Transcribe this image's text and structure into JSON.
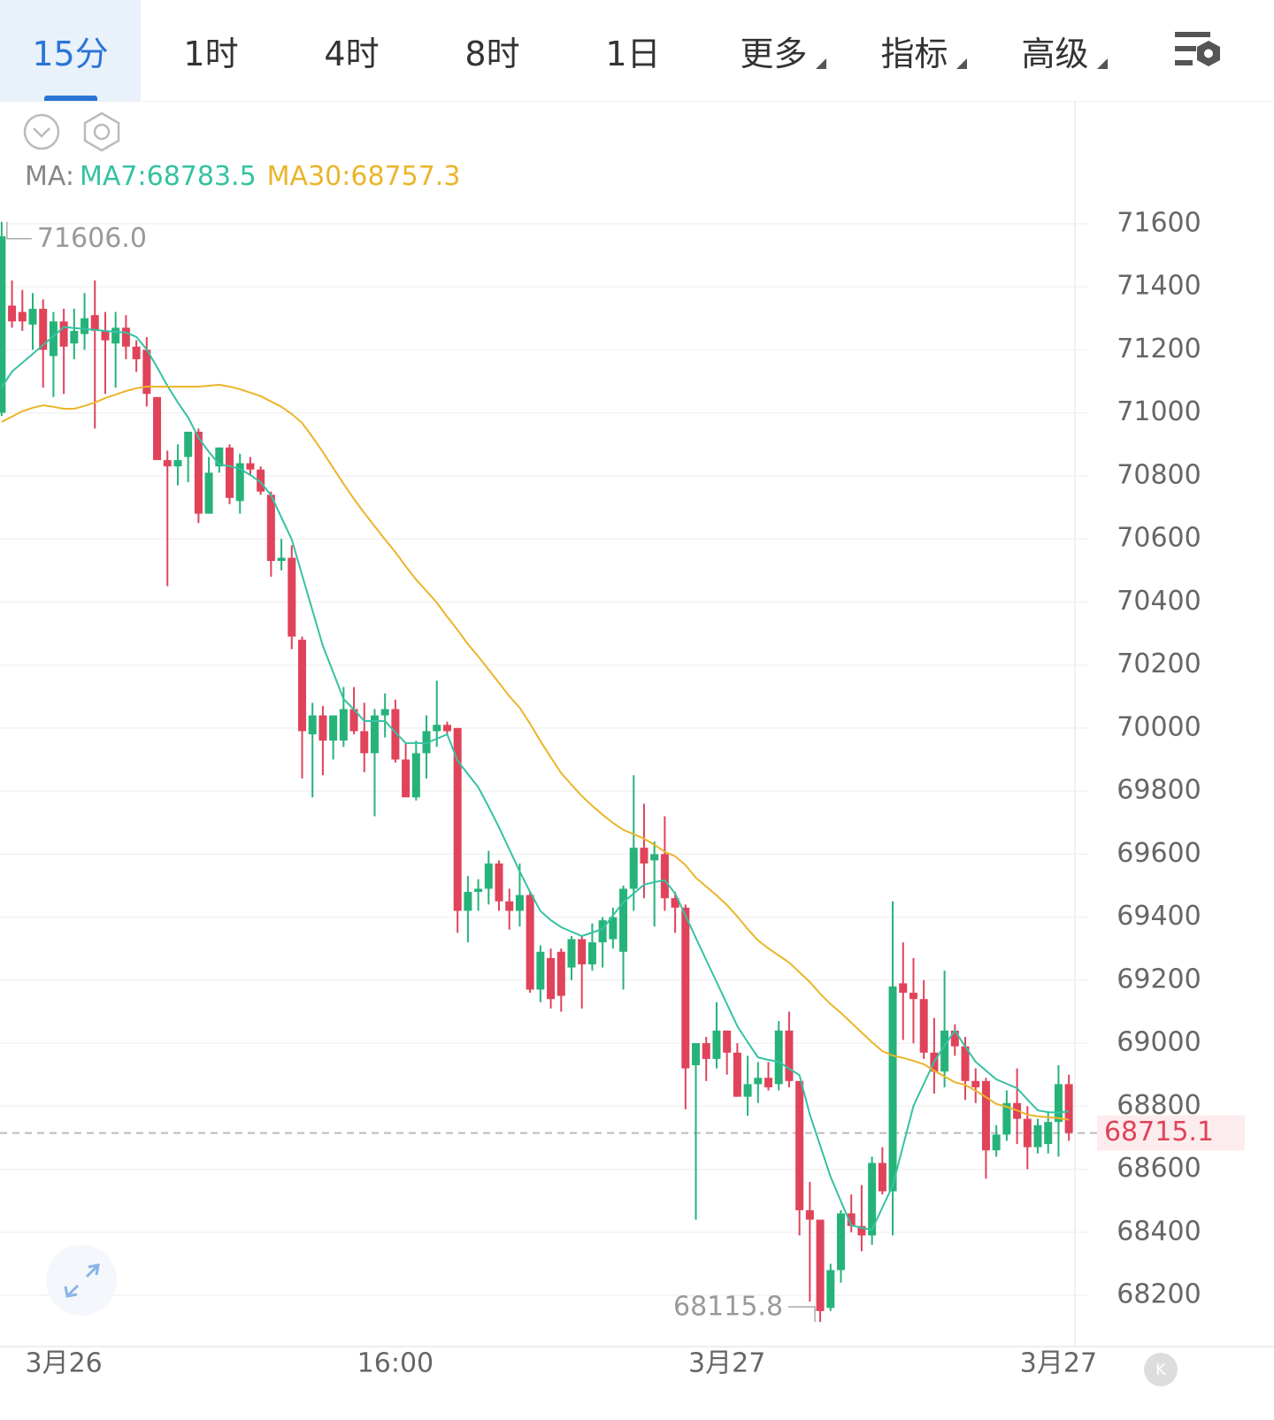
{
  "tabs": [
    "15分",
    "1时",
    "4时",
    "8时",
    "1日",
    "更多",
    "指标",
    "高级"
  ],
  "chart_data": {
    "type": "candlestick",
    "ma_label": "MA:",
    "categories": [
      null,
      null,
      null,
      null,
      null,
      null,
      "3月26",
      null,
      null,
      null,
      null,
      null,
      null,
      null,
      null,
      null,
      null,
      null,
      null,
      null,
      null,
      null,
      null,
      null,
      null,
      null,
      null,
      null,
      null,
      null,
      null,
      null,
      null,
      null,
      null,
      null,
      null,
      null,
      "16:00",
      null,
      null,
      null,
      null,
      null,
      null,
      null,
      null,
      null,
      null,
      null,
      null,
      null,
      null,
      null,
      null,
      null,
      null,
      null,
      null,
      null,
      null,
      null,
      null,
      null,
      null,
      null,
      null,
      null,
      null,
      null,
      "3月27",
      null,
      null,
      null,
      null,
      null,
      null,
      null,
      null,
      null,
      null,
      null,
      null,
      null,
      null,
      null,
      null,
      null,
      null,
      null,
      null,
      null,
      null,
      null,
      null,
      null,
      null,
      null,
      null,
      null,
      null,
      null,
      "3月27",
      null
    ],
    "open": [
      71000,
      71340,
      71320,
      71280,
      71330,
      71180,
      71290,
      71220,
      71250,
      71310,
      71260,
      71220,
      71270,
      71210,
      71200,
      71050,
      70850,
      70830,
      70860,
      70940,
      70680,
      70830,
      70890,
      70720,
      70840,
      70820,
      70740,
      70530,
      70540,
      70280,
      69980,
      70040,
      69960,
      69960,
      70060,
      69990,
      69920,
      70040,
      70060,
      69900,
      69780,
      69920,
      69990,
      70010,
      70000,
      69420,
      69480,
      69490,
      69570,
      69450,
      69420,
      69470,
      69170,
      69270,
      69290,
      69240,
      69330,
      69250,
      69320,
      69330,
      69290,
      69490,
      69620,
      69580,
      69600,
      69460,
      69430,
      68930,
      69000,
      68950,
      69040,
      68970,
      68830,
      68870,
      68890,
      68870,
      69040,
      68880,
      68470,
      68440,
      68160,
      68280,
      68460,
      68420,
      68390,
      68620,
      68530,
      69190,
      69160,
      69140,
      68970,
      68910,
      69040,
      68990,
      68880,
      68880,
      68660,
      68710,
      68810,
      68760,
      68670,
      68680,
      68750,
      68870
    ],
    "high": [
      71606,
      71420,
      71390,
      71380,
      71360,
      71320,
      71330,
      71330,
      71380,
      71420,
      71320,
      71320,
      71310,
      71230,
      71240,
      71050,
      70880,
      70900,
      70940,
      70950,
      70860,
      70890,
      70900,
      70870,
      70860,
      70830,
      70750,
      70600,
      70580,
      70290,
      70080,
      70070,
      70040,
      70130,
      70130,
      70080,
      70060,
      70110,
      70090,
      69950,
      69960,
      70040,
      70150,
      70020,
      70000,
      69530,
      69520,
      69610,
      69580,
      69490,
      69570,
      69480,
      69310,
      69300,
      69300,
      69340,
      69340,
      69380,
      69400,
      69430,
      69500,
      69850,
      69760,
      69640,
      69720,
      69480,
      69440,
      69000,
      69020,
      69130,
      69040,
      69000,
      68960,
      68940,
      68940,
      69070,
      69100,
      68880,
      68560,
      68440,
      68300,
      68470,
      68520,
      68550,
      68640,
      68670,
      69450,
      69320,
      69270,
      69200,
      69080,
      69230,
      69060,
      69020,
      68920,
      68890,
      68740,
      68850,
      68920,
      68800,
      68760,
      68780,
      68930,
      68900
    ],
    "low": [
      70990,
      71270,
      71260,
      71200,
      71080,
      71050,
      71060,
      71170,
      71200,
      70950,
      71060,
      71080,
      71170,
      71130,
      71020,
      70850,
      70450,
      70770,
      70780,
      70650,
      70680,
      70810,
      70710,
      70680,
      70800,
      70740,
      70480,
      70500,
      70250,
      69840,
      69780,
      69850,
      69900,
      69940,
      69980,
      69860,
      69720,
      69970,
      69890,
      69780,
      69770,
      69840,
      69940,
      69980,
      69350,
      69320,
      69420,
      69440,
      69420,
      69360,
      69370,
      69160,
      69130,
      69110,
      69100,
      69200,
      69110,
      69230,
      69240,
      69300,
      69170,
      69420,
      69460,
      69370,
      69420,
      69350,
      68790,
      68440,
      68880,
      68920,
      68900,
      68830,
      68770,
      68810,
      68850,
      68850,
      68860,
      68390,
      68180,
      68115.8,
      68150,
      68240,
      68400,
      68340,
      68360,
      68520,
      68390,
      69010,
      69000,
      68950,
      68840,
      68860,
      68960,
      68820,
      68810,
      68570,
      68640,
      68690,
      68680,
      68600,
      68650,
      68650,
      68640,
      68690
    ],
    "close": [
      71560,
      71290,
      71290,
      71330,
      71200,
      71290,
      71210,
      71260,
      71300,
      71260,
      71230,
      71270,
      71210,
      71170,
      71060,
      70850,
      70830,
      70850,
      70940,
      70680,
      70810,
      70890,
      70730,
      70840,
      70820,
      70750,
      70530,
      70540,
      70290,
      69990,
      70040,
      69960,
      70040,
      70060,
      69990,
      69920,
      70040,
      70060,
      69900,
      69780,
      69920,
      69990,
      70010,
      69990,
      69420,
      69480,
      69490,
      69570,
      69450,
      69420,
      69470,
      69170,
      69290,
      69140,
      69150,
      69330,
      69250,
      69320,
      69390,
      69400,
      69490,
      69620,
      69570,
      69600,
      69460,
      69430,
      68920,
      69000,
      68950,
      69040,
      68970,
      68830,
      68870,
      68890,
      68860,
      69040,
      68880,
      68470,
      68440,
      68150,
      68280,
      68460,
      68420,
      68390,
      68620,
      68530,
      69180,
      69160,
      69140,
      68970,
      68910,
      69040,
      68990,
      68880,
      68860,
      68660,
      68710,
      68810,
      68760,
      68670,
      68740,
      68750,
      68870,
      68715.1
    ],
    "up_color": "#26b37a",
    "down_color": "#e0435a",
    "series": [
      {
        "name": "MA7:68783.5",
        "color": "#35c2a2",
        "values": [
          71081,
          71131,
          71159,
          71187,
          71215,
          71243,
          71272,
          71269,
          71266,
          71263,
          71260,
          71257,
          71255,
          71241,
          71201,
          71145,
          71086,
          71033,
          70985,
          70921,
          70876,
          70836,
          70831,
          70822,
          70803,
          70780,
          70738,
          70668,
          70598,
          70485,
          70373,
          70261,
          70177,
          70092,
          70059,
          70022,
          70022,
          70022,
          69986,
          69952,
          69952,
          69952,
          69966,
          69980,
          69896,
          69854,
          69812,
          69750,
          69685,
          69615,
          69545,
          69480,
          69419,
          69390,
          69368,
          69354,
          69340,
          69351,
          69362,
          69405,
          69447,
          69475,
          69503,
          69511,
          69517,
          69475,
          69405,
          69334,
          69264,
          69194,
          69124,
          69054,
          69003,
          68955,
          68947,
          68941,
          68919,
          68899,
          68773,
          68675,
          68576,
          68498,
          68422,
          68414,
          68408,
          68478,
          68548,
          68675,
          68801,
          68871,
          68941,
          68992,
          69040,
          68989,
          68941,
          68913,
          68885,
          68871,
          68857,
          68821,
          68787,
          68781,
          68780,
          68783.5
        ]
      },
      {
        "name": "MA30:68757.3",
        "color": "#ebb52a",
        "values": [
          70971,
          70988,
          71005,
          71016,
          71024,
          71019,
          71013,
          71013,
          71022,
          71033,
          71047,
          71058,
          71069,
          71078,
          71083,
          71083,
          71083,
          71083,
          71083,
          71083,
          71086,
          71089,
          71083,
          71075,
          71064,
          71053,
          71036,
          71019,
          70996,
          70968,
          70923,
          70876,
          70825,
          70775,
          70727,
          70682,
          70640,
          70598,
          70558,
          70513,
          70471,
          70435,
          70398,
          70353,
          70311,
          70266,
          70227,
          70185,
          70143,
          70101,
          70064,
          70014,
          69958,
          69907,
          69857,
          69820,
          69784,
          69753,
          69725,
          69699,
          69677,
          69663,
          69649,
          69629,
          69607,
          69593,
          69565,
          69525,
          69497,
          69469,
          69438,
          69402,
          69362,
          69326,
          69301,
          69278,
          69256,
          69225,
          69194,
          69157,
          69124,
          69096,
          69065,
          69034,
          69003,
          68975,
          68961,
          68953,
          68944,
          68933,
          68913,
          68894,
          68876,
          68868,
          68849,
          68829,
          68807,
          68798,
          68787,
          68773,
          68768,
          68765,
          68762,
          68757.3
        ]
      }
    ],
    "max_label": {
      "value": 71606,
      "label": "71606.0"
    },
    "min_label": {
      "value": 68115.8,
      "label": "68115.8"
    },
    "last_price": 68715.1,
    "ylim": [
      68043,
      71987
    ],
    "yticks": [
      68200,
      68400,
      68600,
      68800,
      69000,
      69200,
      69400,
      69600,
      69800,
      70000,
      70200,
      70400,
      70600,
      70800,
      71000,
      71200,
      71400,
      71600
    ],
    "grid": true
  }
}
